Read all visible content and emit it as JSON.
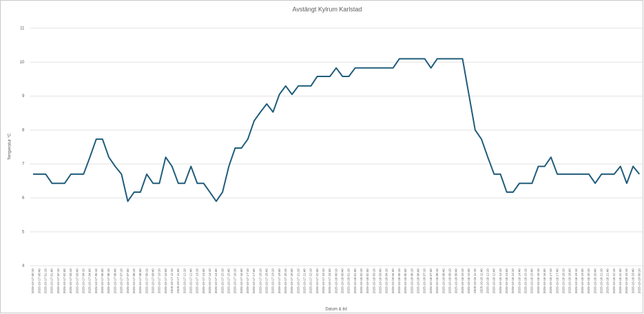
{
  "chart_data": {
    "type": "line",
    "title": "Avstängt Kylrum Karlstad",
    "xlabel": "Datum & tid",
    "ylabel": "Temperatur °C",
    "color": "#1f5c7a",
    "grid": true,
    "ylim": [
      4,
      11
    ],
    "yticks": [
      4,
      5,
      6,
      7,
      8,
      9,
      10,
      11
    ],
    "categories": [
      "2025-10-17 00:10",
      "2025-10-17 00:40",
      "2025-10-17 01:10",
      "2025-10-17 01:40",
      "2025-10-17 02:10",
      "2025-10-17 02:40",
      "2025-10-17 03:10",
      "2025-10-17 03:40",
      "2025-10-17 04:10",
      "2025-10-17 04:40",
      "2025-10-17 05:10",
      "2025-10-17 05:40",
      "2025-10-17 06:10",
      "2025-10-17 06:40",
      "2025-10-17 07:10",
      "2025-10-17 07:40",
      "2025-10-17 08:10",
      "2025-10-17 08:40",
      "2025-10-17 09:10",
      "2025-10-17 09:40",
      "2025-10-17 10:10",
      "2025-10-17 10:40",
      "2025-10-17 11:10",
      "2025-10-17 11:40",
      "2025-10-17 12:10",
      "2025-10-17 12:40",
      "2025-10-17 13:10",
      "2025-10-17 13:40",
      "2025-10-17 14:10",
      "2025-10-17 14:40",
      "2025-10-17 15:10",
      "2025-10-17 15:40",
      "2025-10-17 16:10",
      "2025-10-17 16:40",
      "2025-10-17 17:10",
      "2025-10-17 17:40",
      "2025-10-17 18:10",
      "2025-10-17 18:40",
      "2025-10-17 19:10",
      "2025-10-17 19:40",
      "2025-10-17 20:10",
      "2025-10-17 20:40",
      "2025-10-17 21:10",
      "2025-10-17 21:40",
      "2025-10-17 22:10",
      "2025-10-17 22:40",
      "2025-10-17 23:10",
      "2025-10-17 23:40",
      "2025-10-18 00:10",
      "2025-10-18 00:40",
      "2025-10-18 01:10",
      "2025-10-18 01:40",
      "2025-10-18 02:10",
      "2025-10-18 02:40",
      "2025-10-18 03:10",
      "2025-10-18 03:40",
      "2025-10-18 04:10",
      "2025-10-18 04:40",
      "2025-10-18 05:10",
      "2025-10-18 05:40",
      "2025-10-18 06:10",
      "2025-10-18 06:40",
      "2025-10-18 07:10",
      "2025-10-18 07:40",
      "2025-10-18 08:10",
      "2025-10-18 08:40",
      "2025-10-18 09:10",
      "2025-10-18 09:40",
      "2025-10-18 10:10",
      "2025-10-18 10:40",
      "2025-10-18 11:10",
      "2025-10-18 11:40",
      "2025-10-18 12:10",
      "2025-10-18 12:40",
      "2025-10-18 13:10",
      "2025-10-18 13:40",
      "2025-10-18 14:10",
      "2025-10-18 14:40",
      "2025-10-18 15:10",
      "2025-10-18 15:40",
      "2025-10-18 16:10",
      "2025-10-18 16:40",
      "2025-10-18 17:10",
      "2025-10-18 17:40",
      "2025-10-18 18:10",
      "2025-10-18 18:40",
      "2025-10-18 19:10",
      "2025-10-18 19:40",
      "2025-10-18 20:10",
      "2025-10-18 20:40",
      "2025-10-18 21:10",
      "2025-10-18 21:40",
      "2025-10-18 22:10",
      "2025-10-18 22:40",
      "2025-10-18 23:10",
      "2025-10-18 23:40",
      "2025-10-19 00:10"
    ],
    "values": [
      6.7,
      6.7,
      6.7,
      6.43,
      6.43,
      6.43,
      6.7,
      6.7,
      6.7,
      7.2,
      7.73,
      7.73,
      7.2,
      6.93,
      6.7,
      5.9,
      6.17,
      6.17,
      6.7,
      6.43,
      6.43,
      7.2,
      6.93,
      6.43,
      6.43,
      6.93,
      6.43,
      6.43,
      6.17,
      5.9,
      6.17,
      6.93,
      7.47,
      7.47,
      7.73,
      8.27,
      8.53,
      8.77,
      8.53,
      9.05,
      9.3,
      9.05,
      9.3,
      9.3,
      9.3,
      9.58,
      9.58,
      9.58,
      9.83,
      9.58,
      9.58,
      9.83,
      9.83,
      9.83,
      9.83,
      9.83,
      9.83,
      9.83,
      10.1,
      10.1,
      10.1,
      10.1,
      10.1,
      9.83,
      10.1,
      10.1,
      10.1,
      10.1,
      10.1,
      9.05,
      8.0,
      7.73,
      7.2,
      6.7,
      6.7,
      6.17,
      6.17,
      6.43,
      6.43,
      6.43,
      6.93,
      6.93,
      7.2,
      6.7,
      6.7,
      6.7,
      6.7,
      6.7,
      6.7,
      6.43,
      6.7,
      6.7,
      6.7,
      6.93,
      6.43,
      6.93,
      6.7
    ]
  }
}
